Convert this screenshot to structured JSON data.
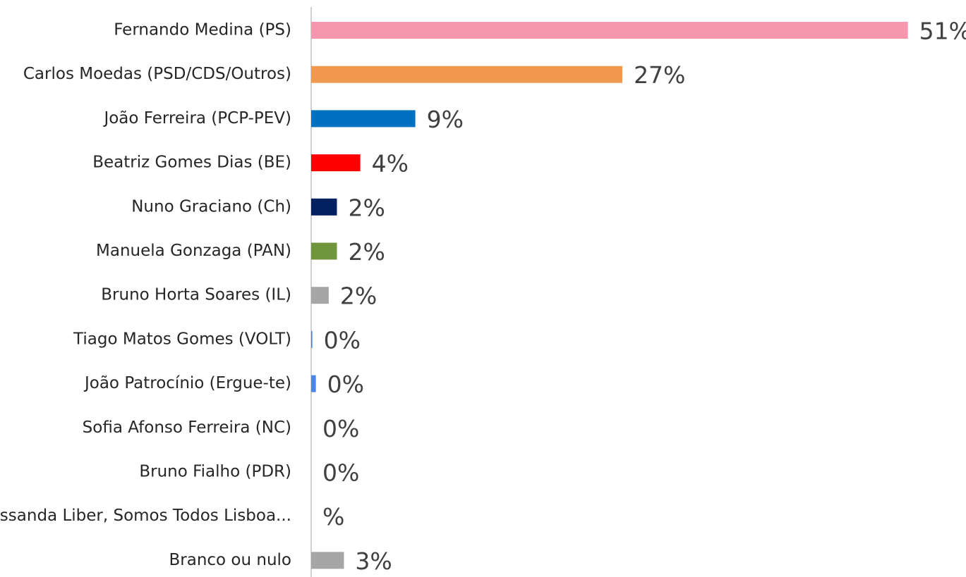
{
  "chart_data": {
    "type": "bar",
    "orientation": "horizontal",
    "categories": [
      "Fernando Medina (PS)",
      "Carlos Moedas (PSD/CDS/Outros)",
      "João Ferreira (PCP-PEV)",
      "Beatriz Gomes Dias (BE)",
      "Nuno Graciano (Ch)",
      "Manuela Gonzaga (PAN)",
      "Bruno Horta Soares (IL)",
      "Tiago Matos Gomes (VOLT)",
      "João Patrocínio (Ergue-te)",
      "Sofia Afonso Ferreira (NC)",
      "Bruno Fialho (PDR)",
      "Ossanda Liber, Somos Todos Lisboa...",
      "Branco ou nulo"
    ],
    "values": [
      51,
      26.6,
      8.9,
      4.2,
      2.2,
      2.2,
      1.5,
      0.1,
      0.4,
      0,
      0,
      null,
      2.8
    ],
    "value_labels": [
      "51%",
      "27%",
      "9%",
      "4%",
      "2%",
      "2%",
      "2%",
      "0%",
      "0%",
      "0%",
      "0%",
      "%",
      "3%"
    ],
    "colors": [
      "#f797ae",
      "#f0994f",
      "#0070c0",
      "#ff0000",
      "#002060",
      "#70963c",
      "#a6a6a6",
      "#4a86e8",
      "#4a86e8",
      "#4a86e8",
      "#4a86e8",
      "#4a86e8",
      "#a6a6a6"
    ],
    "xlim": [
      0,
      55
    ]
  }
}
